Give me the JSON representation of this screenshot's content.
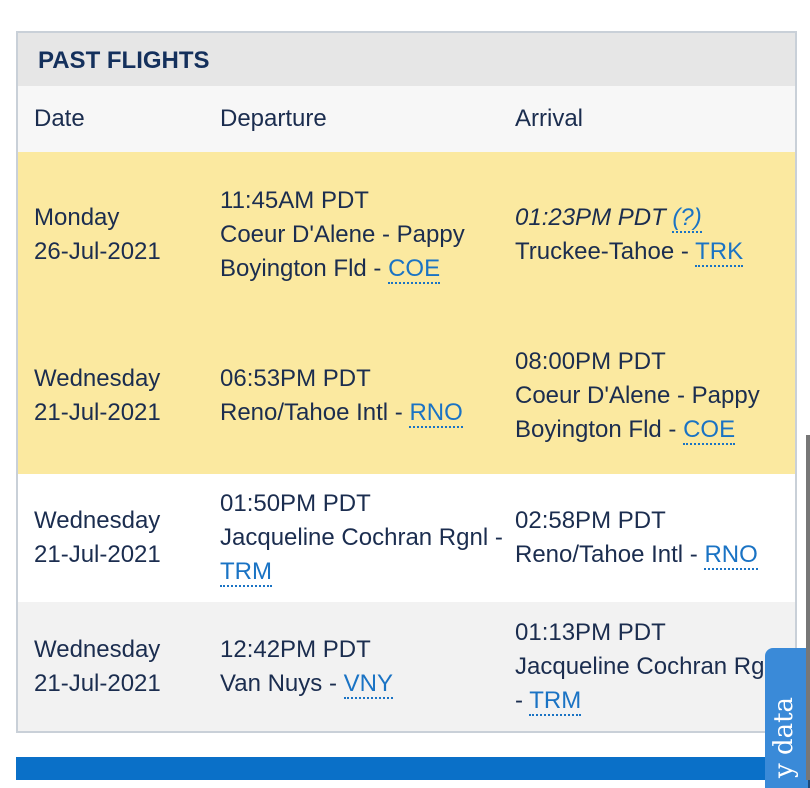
{
  "title": "PAST FLIGHTS",
  "columns": [
    "Date",
    "Departure",
    "Arrival"
  ],
  "rows": [
    {
      "style": "y",
      "day": "Monday",
      "date": "26-Jul-2021",
      "dep_time": "11:45AM PDT",
      "dep_name": "Coeur D'Alene - Pappy Boyington Fld - ",
      "dep_code": "COE",
      "arr_time": "01:23PM PDT",
      "arr_estimated": true,
      "arr_help": "(?)",
      "arr_name": "Truckee-Tahoe - ",
      "arr_code": "TRK"
    },
    {
      "style": "y",
      "day": "Wednesday",
      "date": "21-Jul-2021",
      "dep_time": "06:53PM PDT",
      "dep_name": "Reno/Tahoe Intl - ",
      "dep_code": "RNO",
      "arr_time": "08:00PM PDT",
      "arr_name": "Coeur D'Alene - Pappy Boyington Fld - ",
      "arr_code": "COE"
    },
    {
      "style": "w",
      "day": "Wednesday",
      "date": "21-Jul-2021",
      "dep_time": "01:50PM PDT",
      "dep_name": "Jacqueline Cochran Rgnl - ",
      "dep_code": "TRM",
      "arr_time": "02:58PM PDT",
      "arr_name": "Reno/Tahoe Intl - ",
      "arr_code": "RNO"
    },
    {
      "style": "g",
      "day": "Wednesday",
      "date": "21-Jul-2021",
      "dep_time": "12:42PM PDT",
      "dep_name": "Van Nuys - ",
      "dep_code": "VNY",
      "arr_time": "01:13PM PDT",
      "arr_name": "Jacqueline Cochran Rgnl - ",
      "arr_code": "TRM"
    }
  ],
  "feedback_tab": "y data",
  "colors": {
    "highlight": "#fbe9a0",
    "link": "#1a73c4",
    "accent": "#0a70c8"
  }
}
